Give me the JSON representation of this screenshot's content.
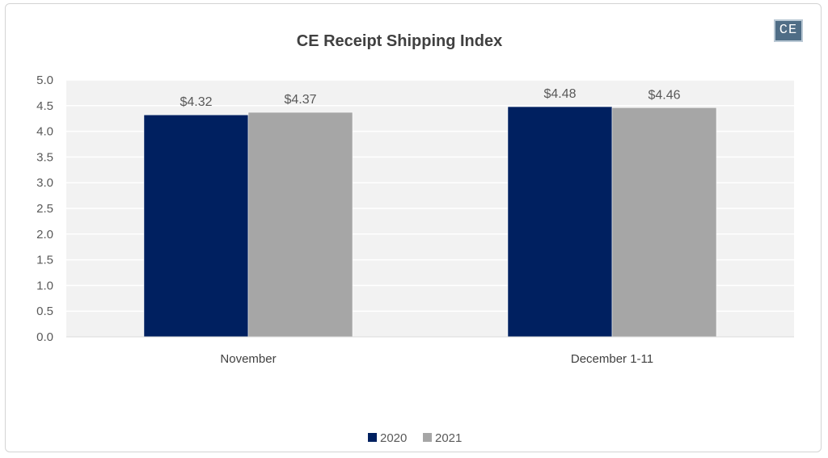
{
  "chart_data": {
    "type": "bar",
    "title": "CE Receipt Shipping Index",
    "categories": [
      "November",
      "December 1-11"
    ],
    "series": [
      {
        "name": "2020",
        "values": [
          4.32,
          4.48
        ],
        "labels": [
          "$4.32",
          "$4.48"
        ],
        "color": "#002060"
      },
      {
        "name": "2021",
        "values": [
          4.37,
          4.46
        ],
        "labels": [
          "$4.37",
          "$4.46"
        ],
        "color": "#a6a6a6"
      }
    ],
    "ylim": [
      0,
      5.0
    ],
    "yticks": [
      "0.0",
      "0.5",
      "1.0",
      "1.5",
      "2.0",
      "2.5",
      "3.0",
      "3.5",
      "4.0",
      "4.5",
      "5.0"
    ],
    "grid": true,
    "legend": "bottom",
    "plot_background": "#f2f2f2",
    "gridline_color": "#ffffff"
  },
  "logo": {
    "text": "CE",
    "color": "#4f6d86"
  }
}
